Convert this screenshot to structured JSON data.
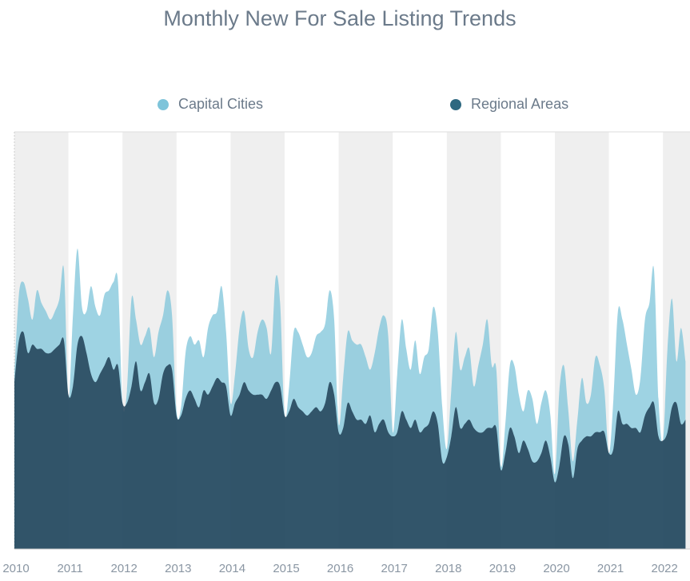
{
  "chart_data": {
    "type": "area",
    "title": "Monthly New For Sale Listing Trends",
    "xlabel": "",
    "ylabel": "",
    "x_tick_labels": [
      "2010",
      "2011",
      "2012",
      "2013",
      "2014",
      "2015",
      "2016",
      "2017",
      "2018",
      "2019",
      "2020",
      "2021",
      "2022"
    ],
    "x_range": [
      2010,
      2022.5
    ],
    "ylim": [
      0,
      100
    ],
    "grid": "alternating-year-bands",
    "legend_position": "top",
    "series_note": "Values on a 0-100 relative scale (no y-axis labels shown); one point per month, Jan 2010 - Jun 2022",
    "series": [
      {
        "name": "Capital Cities",
        "color": "#7ec4da",
        "values": [
          42,
          61,
          64,
          60,
          55,
          62,
          59,
          57,
          55,
          57,
          60,
          67,
          36,
          56,
          72,
          58,
          57,
          63,
          58,
          56,
          61,
          62,
          64,
          64,
          35,
          38,
          60,
          55,
          49,
          51,
          53,
          46,
          52,
          56,
          62,
          56,
          33,
          34,
          47,
          51,
          49,
          50,
          46,
          53,
          56,
          57,
          63,
          52,
          35,
          42,
          53,
          57,
          48,
          46,
          52,
          55,
          53,
          47,
          65,
          59,
          32,
          39,
          52,
          52,
          49,
          46,
          47,
          51,
          52,
          54,
          62,
          55,
          30,
          41,
          52,
          50,
          49,
          49,
          46,
          43,
          47,
          53,
          56,
          51,
          28,
          42,
          55,
          48,
          43,
          50,
          42,
          46,
          48,
          58,
          52,
          34,
          24,
          38,
          52,
          43,
          46,
          48,
          39,
          44,
          49,
          55,
          44,
          43,
          20,
          30,
          44,
          44,
          37,
          33,
          38,
          36,
          30,
          35,
          38,
          32,
          18,
          38,
          44,
          33,
          21,
          31,
          41,
          35,
          37,
          46,
          44,
          38,
          23,
          36,
          57,
          55,
          49,
          43,
          37,
          41,
          55,
          59,
          67,
          36,
          26,
          48,
          60,
          45,
          53,
          45
        ]
      },
      {
        "name": "Regional Areas",
        "color": "#2e6880",
        "values": [
          40,
          50,
          52,
          47,
          49,
          48,
          48,
          47,
          47,
          48,
          49,
          50,
          37,
          39,
          49,
          51,
          47,
          42,
          40,
          42,
          44,
          46,
          43,
          44,
          35,
          35,
          39,
          45,
          38,
          40,
          42,
          35,
          36,
          42,
          44,
          43,
          32,
          32,
          36,
          38,
          36,
          34,
          38,
          37,
          39,
          41,
          40,
          39,
          32,
          35,
          37,
          40,
          38,
          37,
          37,
          37,
          36,
          38,
          40,
          39,
          32,
          33,
          36,
          34,
          33,
          32,
          33,
          34,
          33,
          35,
          40,
          37,
          28,
          29,
          35,
          33,
          31,
          31,
          30,
          32,
          28,
          30,
          31,
          28,
          27,
          28,
          33,
          31,
          29,
          31,
          28,
          29,
          30,
          33,
          30,
          21,
          22,
          27,
          34,
          29,
          30,
          31,
          29,
          28,
          28,
          29,
          29,
          29,
          19,
          23,
          29,
          27,
          23,
          26,
          24,
          21,
          21,
          23,
          26,
          22,
          16,
          20,
          27,
          25,
          17,
          24,
          26,
          27,
          27,
          28,
          28,
          28,
          23,
          24,
          33,
          30,
          30,
          29,
          29,
          28,
          32,
          34,
          35,
          27,
          26,
          28,
          34,
          35,
          30,
          31
        ]
      }
    ]
  }
}
